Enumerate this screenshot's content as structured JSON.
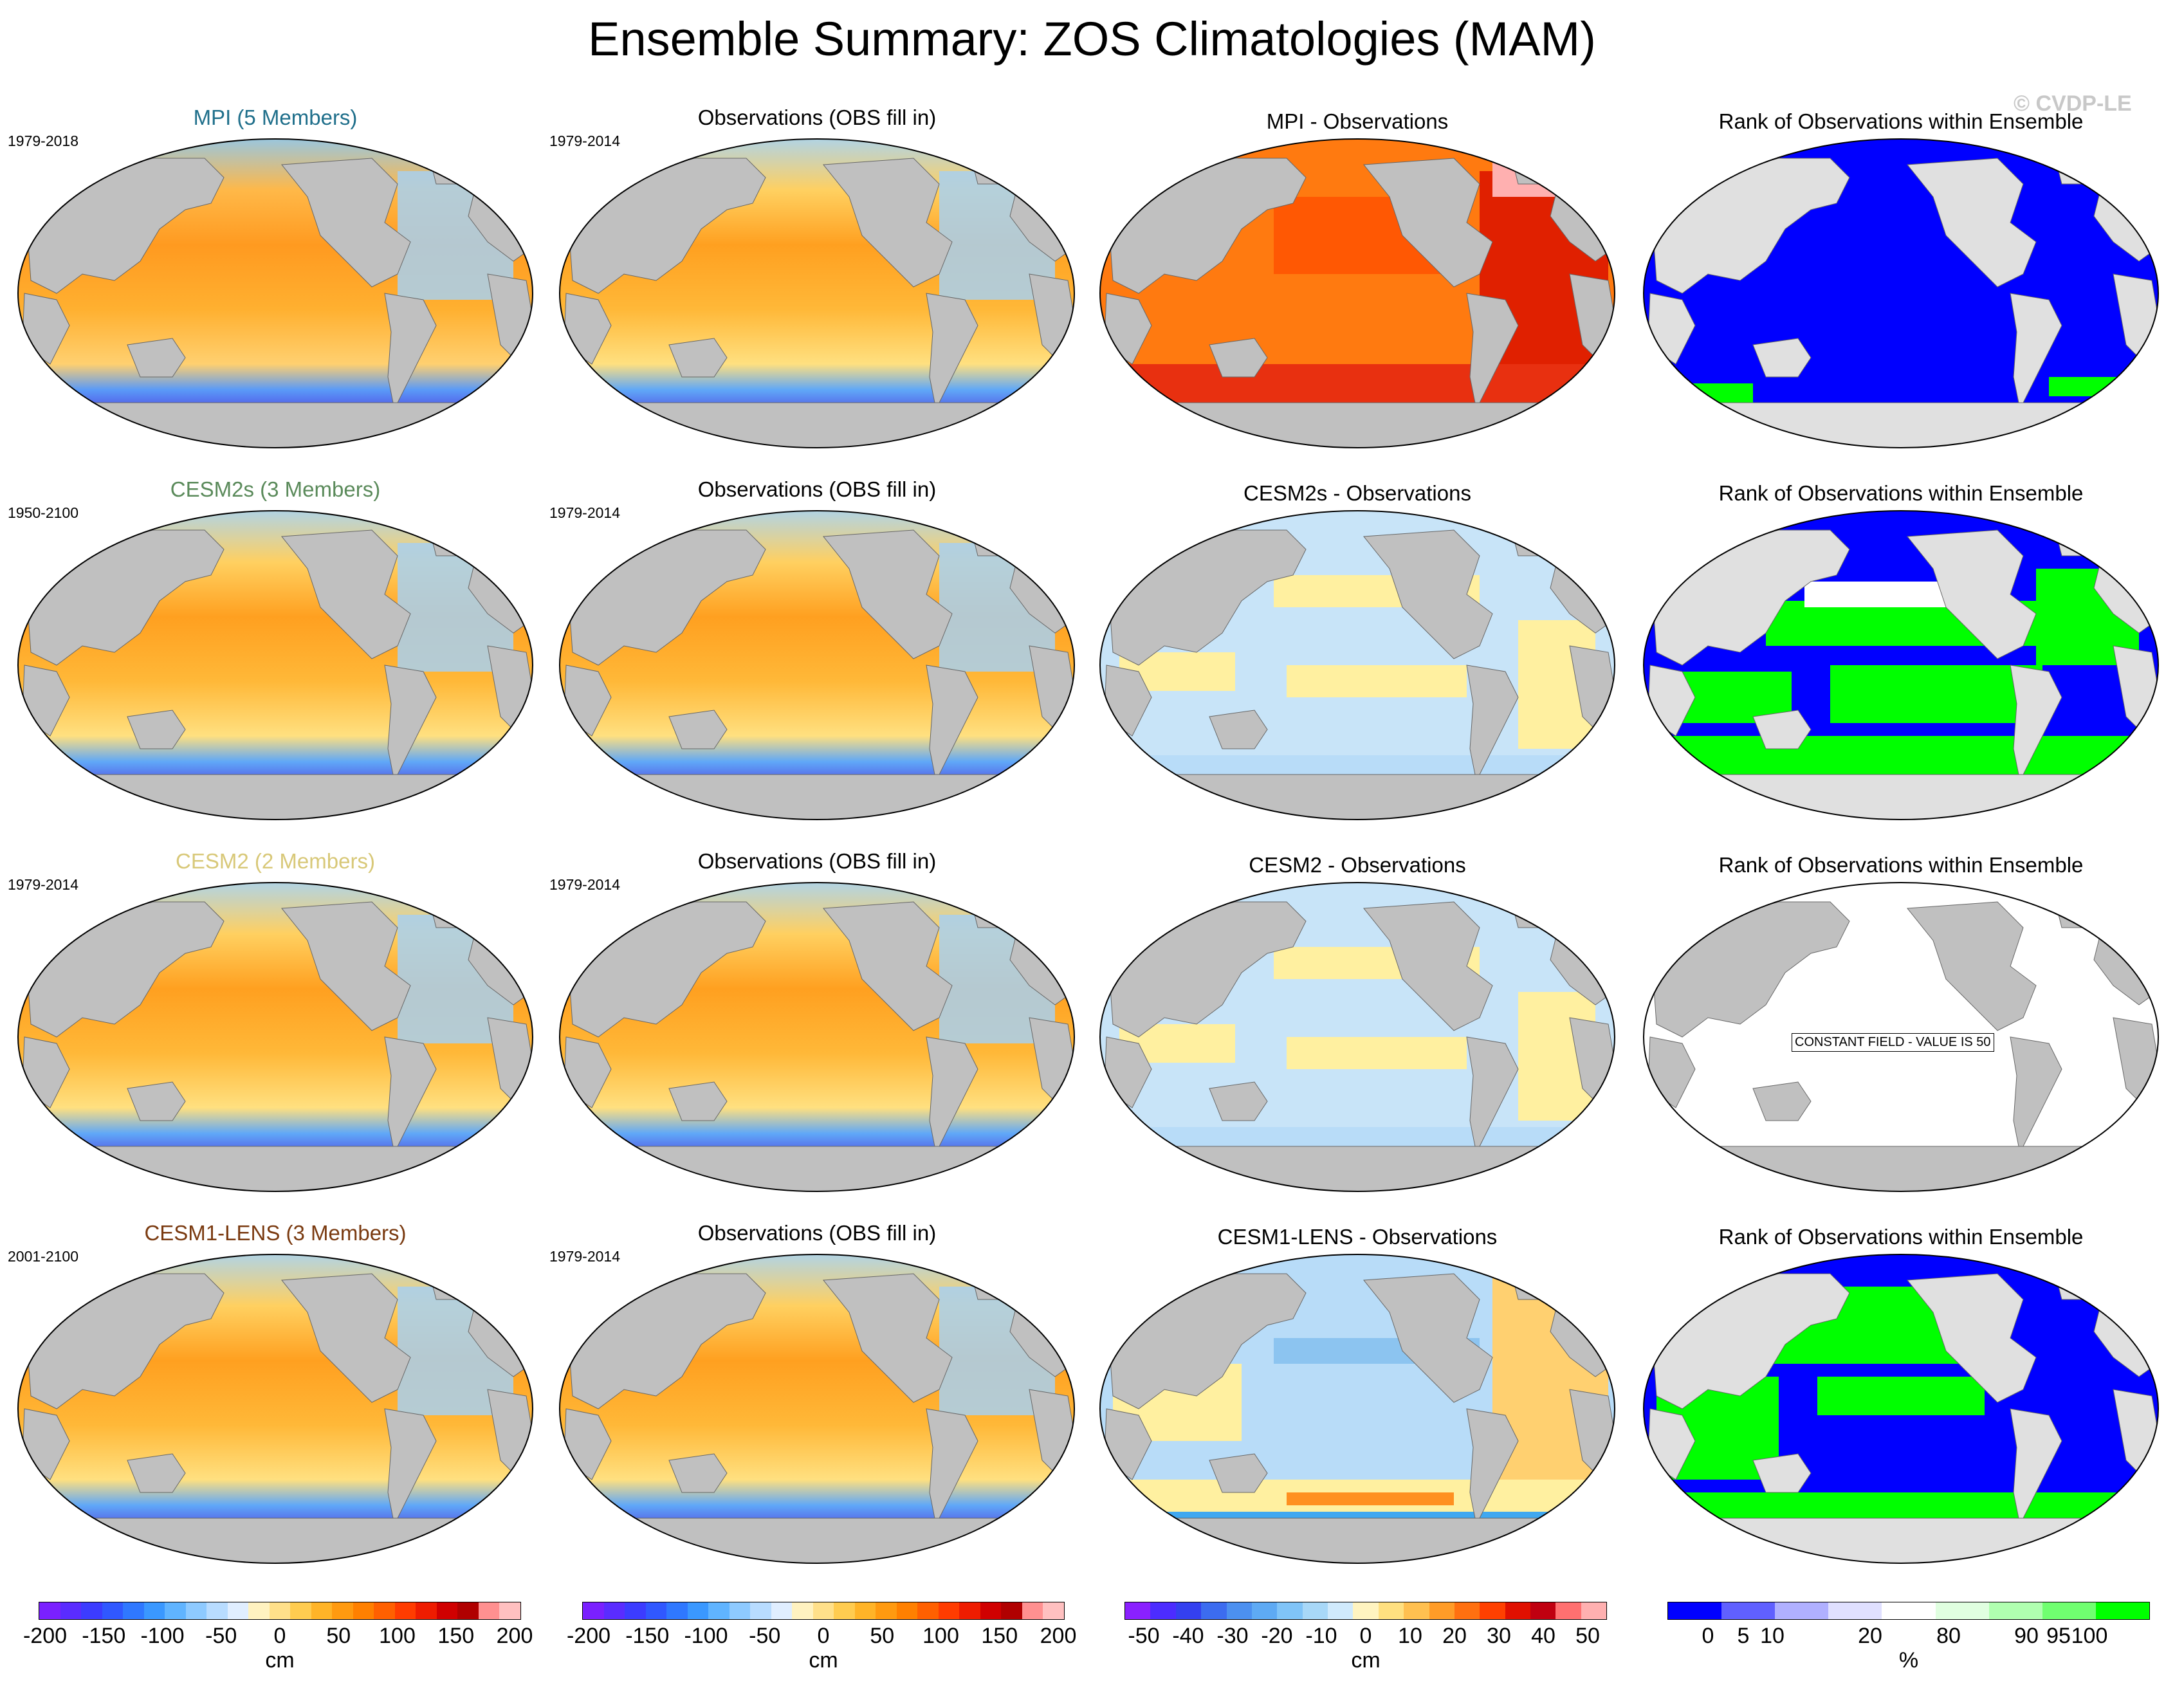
{
  "title": "Ensemble Summary: ZOS Climatologies (MAM)",
  "watermark": "© CVDP-LE",
  "rows": [
    {
      "model": {
        "title": "MPI (5 Members)",
        "title_color": "#1f6f8b",
        "years": "1979-2018"
      },
      "obs": {
        "title": "Observations (OBS fill in)",
        "years": "1979-2014"
      },
      "diff": {
        "title": "MPI - Observations"
      },
      "rank": {
        "title": "Rank of Observations within Ensemble"
      }
    },
    {
      "model": {
        "title": "CESM2s (3 Members)",
        "title_color": "#5a8a5a",
        "years": "1950-2100"
      },
      "obs": {
        "title": "Observations (OBS fill in)",
        "years": "1979-2014"
      },
      "diff": {
        "title": "CESM2s - Observations"
      },
      "rank": {
        "title": "Rank of Observations within Ensemble"
      }
    },
    {
      "model": {
        "title": "CESM2 (2 Members)",
        "title_color": "#d8c878",
        "years": "1979-2014"
      },
      "obs": {
        "title": "Observations (OBS fill in)",
        "years": "1979-2014"
      },
      "diff": {
        "title": "CESM2 - Observations"
      },
      "rank": {
        "title": "Rank of Observations within Ensemble",
        "constant_label": "CONSTANT FIELD - VALUE IS 50"
      }
    },
    {
      "model": {
        "title": "CESM1-LENS (3 Members)",
        "title_color": "#7a3a10",
        "years": "2001-2100"
      },
      "obs": {
        "title": "Observations (OBS fill in)",
        "years": "1979-2014"
      },
      "diff": {
        "title": "CESM1-LENS - Observations"
      },
      "rank": {
        "title": "Rank of Observations within Ensemble"
      }
    }
  ],
  "colorbars": [
    {
      "unit": "cm",
      "ticks": [
        "-200",
        "-150",
        "-100",
        "-50",
        "0",
        "50",
        "100",
        "150",
        "200"
      ]
    },
    {
      "unit": "cm",
      "ticks": [
        "-200",
        "-150",
        "-100",
        "-50",
        "0",
        "50",
        "100",
        "150",
        "200"
      ]
    },
    {
      "unit": "cm",
      "ticks": [
        "-50",
        "-40",
        "-30",
        "-20",
        "-10",
        "0",
        "10",
        "20",
        "30",
        "40",
        "50"
      ]
    },
    {
      "unit": "%",
      "ticks": [
        "0",
        "5",
        "10",
        "20",
        "80",
        "90",
        "95",
        "100"
      ]
    }
  ],
  "colors": {
    "land": "#c0c0c0",
    "land_light": "#e0e0e0",
    "rank_blue": "#0000ff",
    "rank_green": "#00ff00",
    "ocean_warm": "#ffb000",
    "ocean_hot": "#ff7000",
    "ocean_cool": "#a8d0f0",
    "southern": "#5050e0",
    "diff_red": "#e02000",
    "diff_yellow": "#fff0a0",
    "diff_lightblue": "#c8e4f8"
  }
}
